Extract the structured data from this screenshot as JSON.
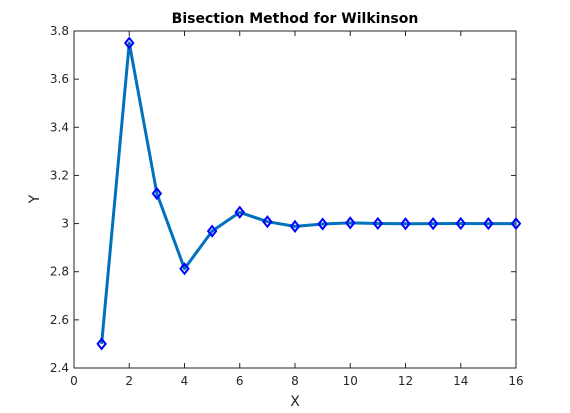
{
  "chart_data": {
    "type": "line",
    "title": "Bisection Method for Wilkinson",
    "xlabel": "X",
    "ylabel": "Y",
    "xlim": [
      0,
      16
    ],
    "ylim": [
      2.4,
      3.8
    ],
    "xticks": [
      0,
      2,
      4,
      6,
      8,
      10,
      12,
      14,
      16
    ],
    "yticks": [
      2.4,
      2.6,
      2.8,
      3,
      3.2,
      3.4,
      3.6,
      3.8
    ],
    "xtick_labels": [
      "0",
      "2",
      "4",
      "6",
      "8",
      "10",
      "12",
      "14",
      "16"
    ],
    "ytick_labels": [
      "2.4",
      "2.6",
      "2.8",
      "3",
      "3.2",
      "3.4",
      "3.6",
      "3.8"
    ],
    "grid": false,
    "series": [
      {
        "x": [
          1,
          2,
          3,
          4,
          5,
          6,
          7,
          8,
          9,
          10,
          11,
          12,
          13,
          14,
          15,
          16
        ],
        "values": [
          2.5,
          3.75,
          3.125,
          2.8125,
          2.96875,
          3.046875,
          3.0078,
          2.9883,
          2.998,
          3.0029,
          3.0005,
          2.9993,
          2.9999,
          3.0002,
          3.0,
          3.0
        ],
        "line_color": "#0072bd",
        "marker": "diamond",
        "marker_color": "#0000ff"
      }
    ]
  }
}
